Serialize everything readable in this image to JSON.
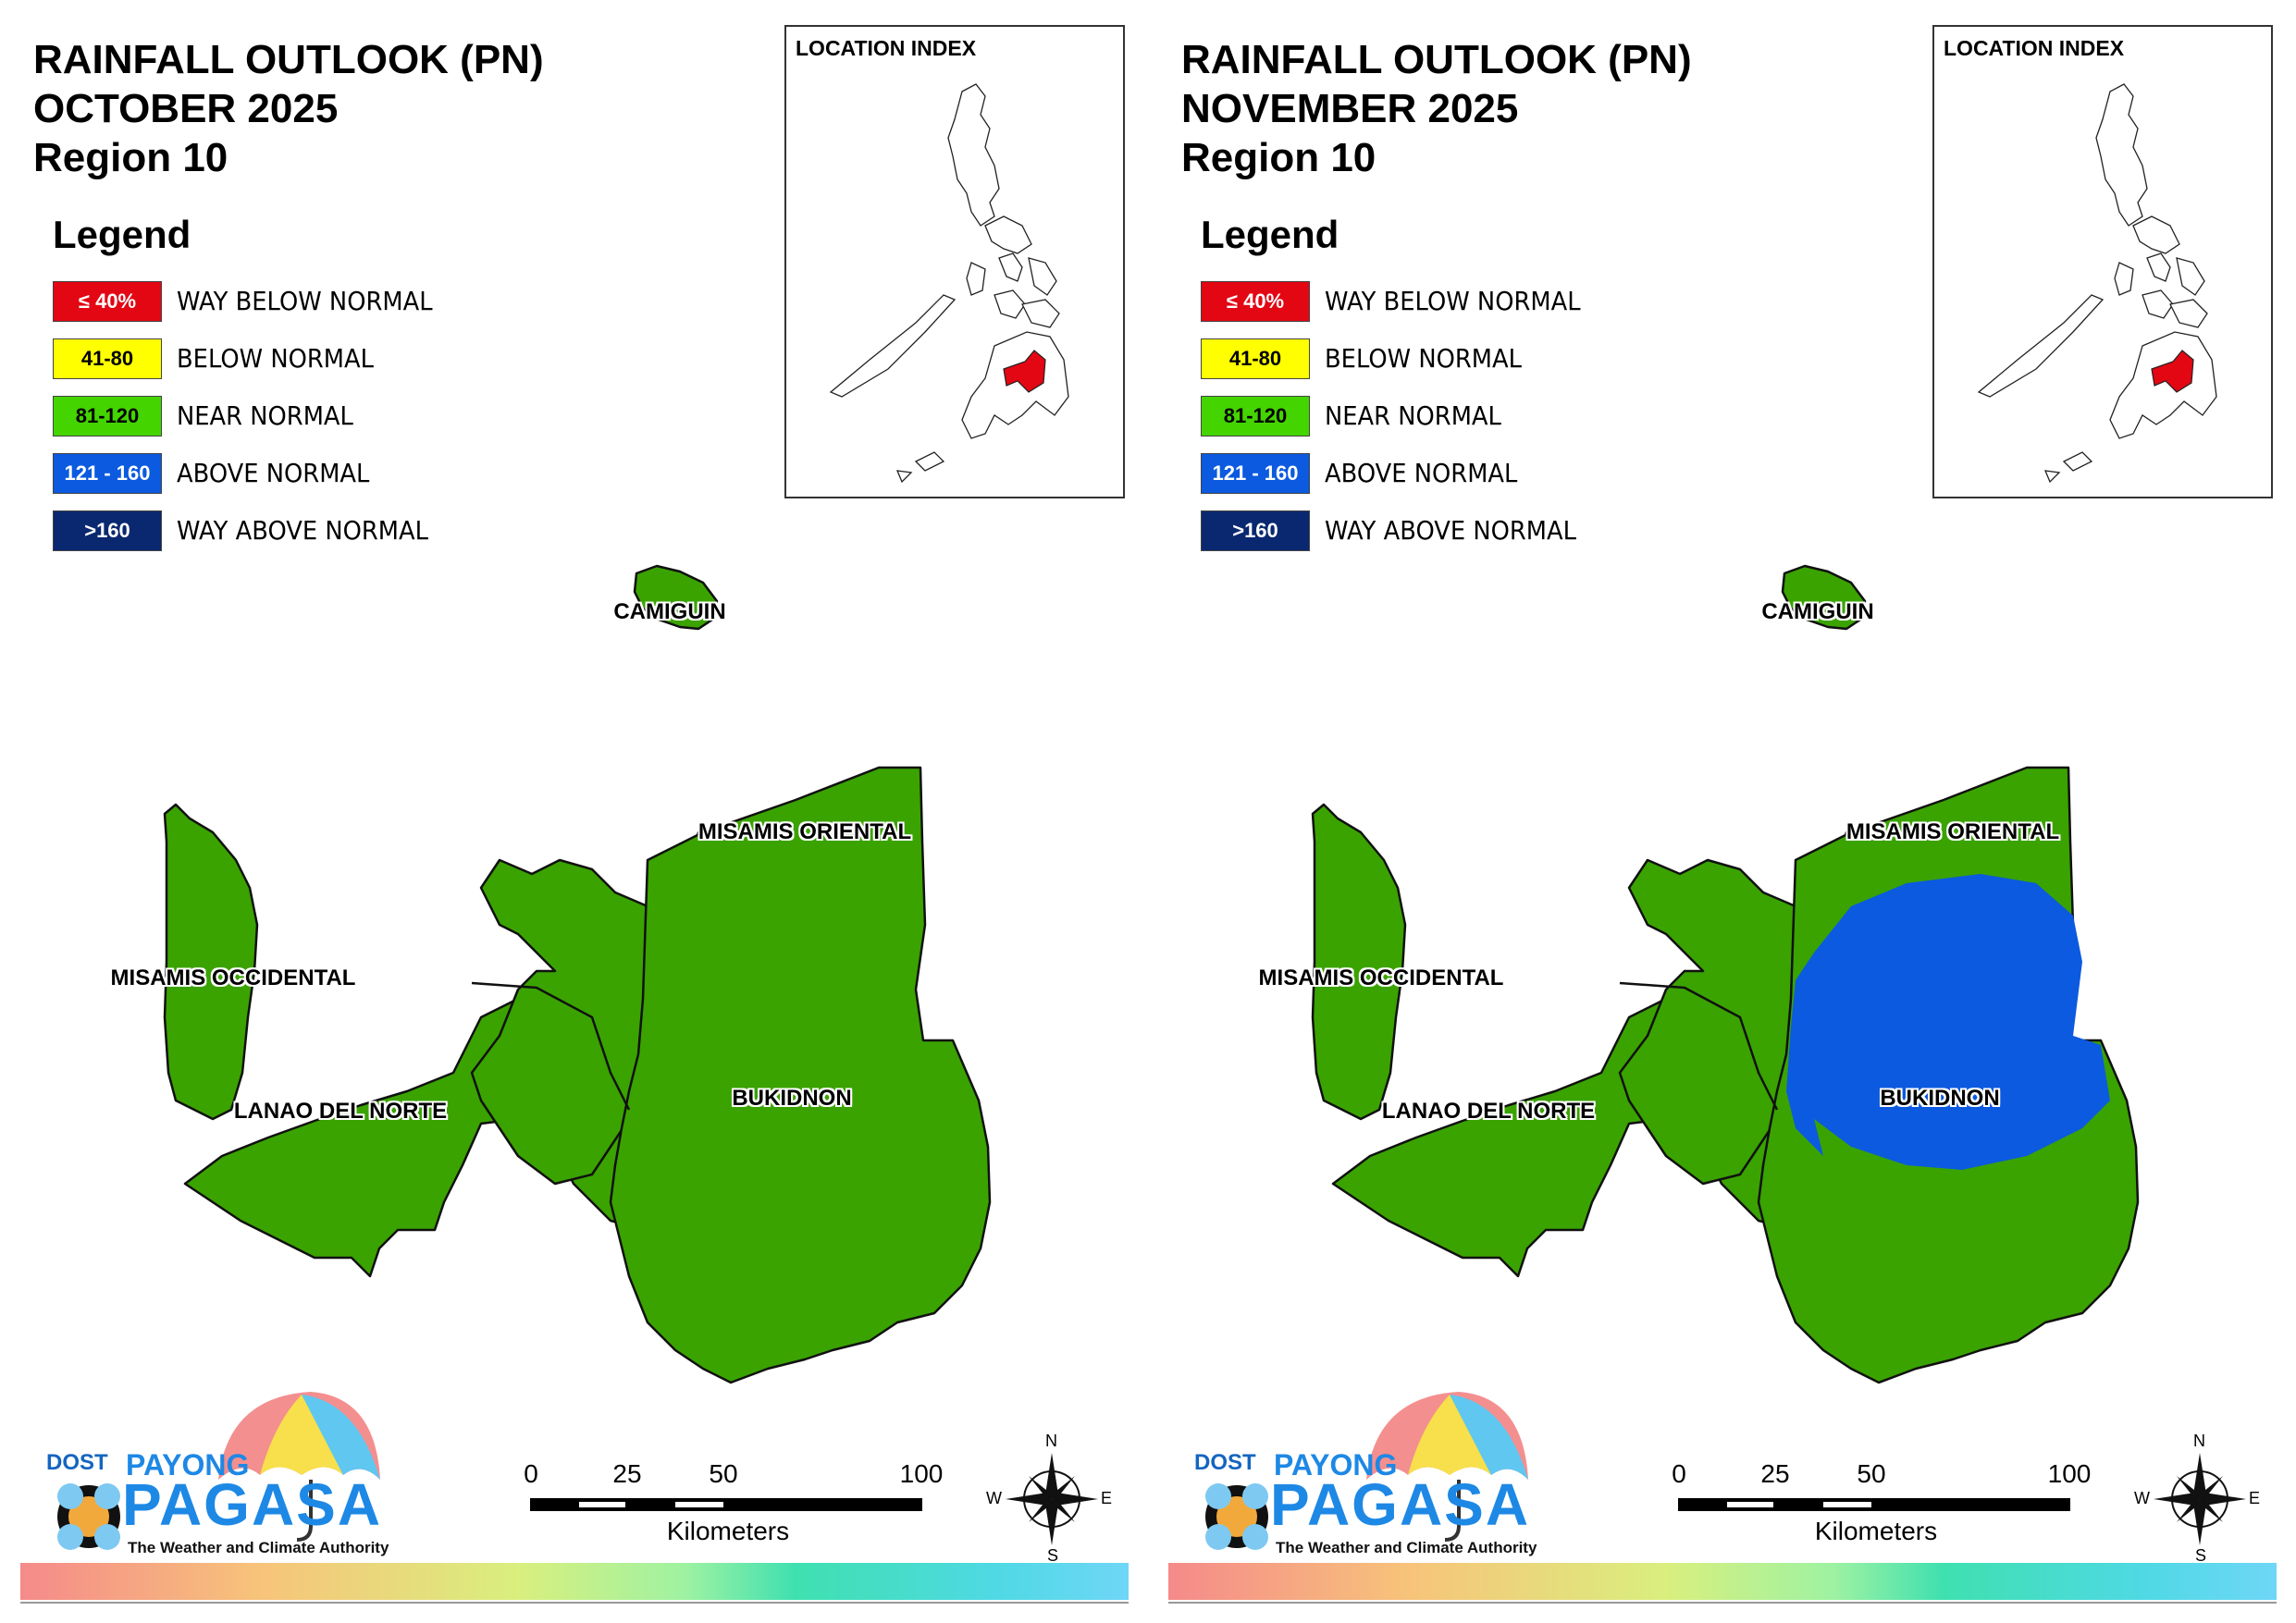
{
  "panels": [
    {
      "title": [
        "RAINFALL OUTLOOK (PN)",
        "OCTOBER 2025",
        "Region 10"
      ],
      "bukidnon_above_normal_zone": false
    },
    {
      "title": [
        "RAINFALL OUTLOOK (PN)",
        "NOVEMBER 2025",
        "Region 10"
      ],
      "bukidnon_above_normal_zone": true
    }
  ],
  "legend": {
    "title": "Legend",
    "items": [
      {
        "range": "≤ 40%",
        "label": "WAY BELOW NORMAL",
        "color": "#e30613",
        "text_color": "#ffffff"
      },
      {
        "range": "41-80",
        "label": "BELOW NORMAL",
        "color": "#ffff00",
        "text_color": "#000000"
      },
      {
        "range": "81-120",
        "label": "NEAR NORMAL",
        "color": "#44d400",
        "text_color": "#000000"
      },
      {
        "range": "121 - 160",
        "label": "ABOVE NORMAL",
        "color": "#0b5ae0",
        "text_color": "#ffffff"
      },
      {
        "range": ">160",
        "label": "WAY ABOVE NORMAL",
        "color": "#0a2870",
        "text_color": "#ffffff"
      }
    ]
  },
  "inset": {
    "title": "LOCATION INDEX",
    "highlight_color": "#e30613"
  },
  "provinces": {
    "camiguin": "CAMIGUIN",
    "misamis_oriental": "MISAMIS ORIENTAL",
    "misamis_occidental": "MISAMIS OCCIDENTAL",
    "lanao_del_norte": "LANAO DEL NORTE",
    "bukidnon": "BUKIDNON"
  },
  "map_colors": {
    "near_normal": "#3aa300",
    "above_normal": "#0b5ae0"
  },
  "scalebar": {
    "ticks": [
      "0",
      "25",
      "50",
      "100"
    ],
    "unit": "Kilometers"
  },
  "compass": {
    "n": "N",
    "e": "E",
    "s": "S",
    "w": "W"
  },
  "logo": {
    "dost": "DOST",
    "payong": "PAYONG",
    "pagasa": "PAGASA",
    "tagline": "The Weather and Climate Authority"
  }
}
